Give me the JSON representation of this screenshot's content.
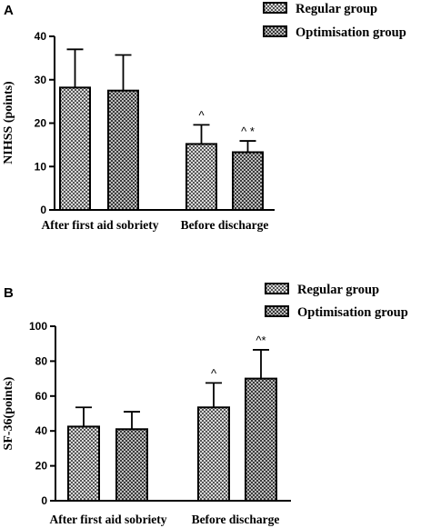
{
  "patterns": {
    "regular_fill": "#d9d9d9",
    "regular_dot": "#555555",
    "optimisation_fill": "#3a3a3a",
    "optimisation_dot": "#bdbdbd"
  },
  "chart_data": [
    {
      "type": "bar",
      "panel_label": "A",
      "ylabel": "NIHSS (points)",
      "ylim": [
        0,
        40
      ],
      "yticks": [
        0,
        10,
        20,
        30,
        40
      ],
      "categories": [
        "After first aid sobriety",
        "Before discharge"
      ],
      "series": [
        {
          "name": "Regular group",
          "values": [
            28.2,
            15.2
          ],
          "errors": [
            8.8,
            4.4
          ],
          "annotations": [
            "",
            "^"
          ]
        },
        {
          "name": "Optimisation group",
          "values": [
            27.5,
            13.3
          ],
          "errors": [
            8.2,
            2.6
          ],
          "annotations": [
            "",
            "^ *"
          ]
        }
      ],
      "legend_position": "top-right"
    },
    {
      "type": "bar",
      "panel_label": "B",
      "ylabel": "SF-36(points)",
      "ylim": [
        0,
        100
      ],
      "yticks": [
        0,
        20,
        40,
        60,
        80,
        100
      ],
      "categories": [
        "After first aid sobriety",
        "Before discharge"
      ],
      "series": [
        {
          "name": "Regular group",
          "values": [
            42.5,
            53.5
          ],
          "errors": [
            11.0,
            14.0
          ],
          "annotations": [
            "",
            "^"
          ]
        },
        {
          "name": "Optimisation group",
          "values": [
            41.0,
            70.0
          ],
          "errors": [
            10.0,
            16.5
          ],
          "annotations": [
            "",
            "^*"
          ]
        }
      ],
      "legend_position": "top-right"
    }
  ]
}
